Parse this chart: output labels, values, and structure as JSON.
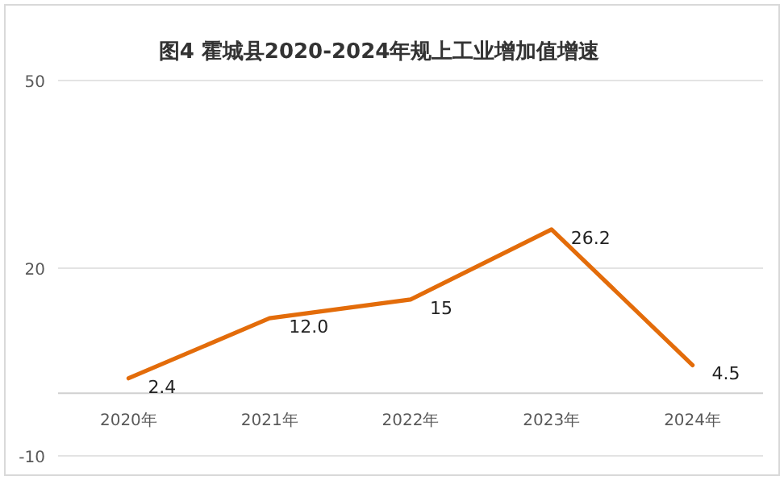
{
  "chart_data": {
    "type": "line",
    "title": "图4 霍城县2020-2024年规上工业增加值增速",
    "categories": [
      "2020年",
      "2021年",
      "2022年",
      "2023年",
      "2024年"
    ],
    "values": [
      2.4,
      12.0,
      15,
      26.2,
      4.5
    ],
    "value_labels": [
      "2.4",
      "12.0",
      "15",
      "26.2",
      "4.5"
    ],
    "color": "#e36c0a",
    "ylim": [
      -10,
      50
    ],
    "yticks": [
      50,
      20,
      {
        "value": 0,
        "label": null
      },
      -10
    ],
    "grid": "y"
  }
}
